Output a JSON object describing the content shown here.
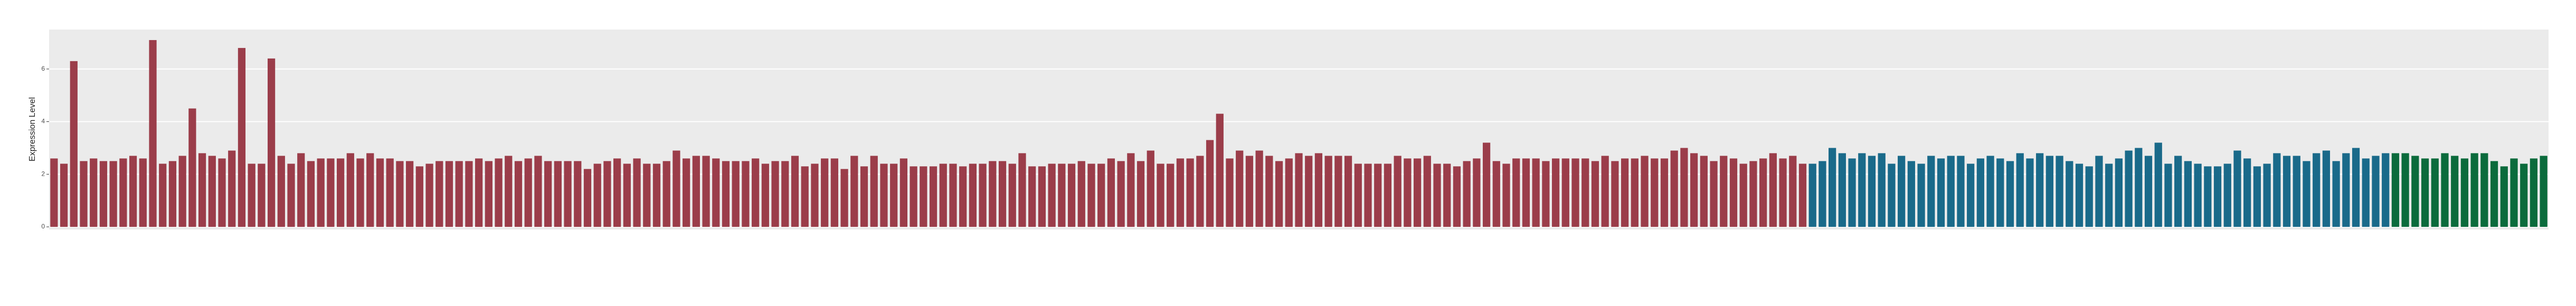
{
  "chart_data": {
    "type": "bar",
    "y_label": "Expression Level",
    "ylim": [
      -0.1,
      7.5
    ],
    "yticks": [
      0,
      2,
      4,
      6
    ],
    "grid": true,
    "series": [
      {
        "color": "#9b3d4a",
        "values": [
          2.6,
          2.4,
          6.3,
          2.5,
          2.6,
          2.5,
          2.5,
          2.6,
          2.7,
          2.6,
          7.1,
          2.4,
          2.5,
          2.7,
          4.5,
          2.8,
          2.7,
          2.6,
          2.9,
          6.8,
          2.4,
          2.4,
          6.4,
          2.7,
          2.4,
          2.8,
          2.5,
          2.6,
          2.6,
          2.6,
          2.8,
          2.6,
          2.8,
          2.6,
          2.6,
          2.5,
          2.5,
          2.3,
          2.4,
          2.5,
          2.5,
          2.5,
          2.5,
          2.6,
          2.5,
          2.6,
          2.7,
          2.5,
          2.6,
          2.7,
          2.5,
          2.5,
          2.5,
          2.5,
          2.2,
          2.4,
          2.5,
          2.6,
          2.4,
          2.6,
          2.4,
          2.4,
          2.5,
          2.9,
          2.6,
          2.7,
          2.7,
          2.6,
          2.5,
          2.5,
          2.5,
          2.6,
          2.4,
          2.5,
          2.5,
          2.7,
          2.3,
          2.4,
          2.6,
          2.6,
          2.2,
          2.7,
          2.3,
          2.7,
          2.4,
          2.4,
          2.6,
          2.3,
          2.3,
          2.3,
          2.4,
          2.4,
          2.3,
          2.4,
          2.4,
          2.5,
          2.5,
          2.4,
          2.8,
          2.3,
          2.3,
          2.4,
          2.4,
          2.4,
          2.5,
          2.4,
          2.4,
          2.6,
          2.5,
          2.8,
          2.5,
          2.9,
          2.4,
          2.4,
          2.6,
          2.6,
          2.7,
          3.3,
          4.3,
          2.6,
          2.9,
          2.7,
          2.9,
          2.7,
          2.5,
          2.6,
          2.8,
          2.7,
          2.8,
          2.7,
          2.7,
          2.7,
          2.4,
          2.4,
          2.4,
          2.4,
          2.7,
          2.6,
          2.6,
          2.7,
          2.4,
          2.4,
          2.3,
          2.5,
          2.6,
          3.2,
          2.5,
          2.4,
          2.6,
          2.6,
          2.6,
          2.5,
          2.6,
          2.6,
          2.6,
          2.6,
          2.5,
          2.7,
          2.5,
          2.6,
          2.6,
          2.7,
          2.6,
          2.6,
          2.9,
          3.0,
          2.8,
          2.7,
          2.5,
          2.7,
          2.6,
          2.4,
          2.5,
          2.6,
          2.8,
          2.6,
          2.7,
          2.4
        ]
      },
      {
        "color": "#1a6a8a",
        "values": [
          2.4,
          2.5,
          3.0,
          2.8,
          2.6,
          2.8,
          2.7,
          2.8,
          2.4,
          2.7,
          2.5,
          2.4,
          2.7,
          2.6,
          2.7,
          2.7,
          2.4,
          2.6,
          2.7,
          2.6,
          2.5,
          2.8,
          2.6,
          2.8,
          2.7,
          2.7,
          2.5,
          2.4,
          2.3,
          2.7,
          2.4,
          2.6,
          2.9,
          3.0,
          2.7,
          3.2,
          2.4,
          2.7,
          2.5,
          2.4,
          2.3,
          2.3,
          2.4,
          2.9,
          2.6,
          2.3,
          2.4,
          2.8,
          2.7,
          2.7,
          2.5,
          2.8,
          2.9,
          2.5,
          2.8,
          3.0,
          2.6,
          2.7,
          2.8
        ]
      },
      {
        "color": "#0b6b3c",
        "values": [
          2.8,
          2.8,
          2.7,
          2.6,
          2.6,
          2.8,
          2.7,
          2.6,
          2.8,
          2.8,
          2.5,
          2.3,
          2.6,
          2.4,
          2.6,
          2.7
        ]
      }
    ]
  }
}
